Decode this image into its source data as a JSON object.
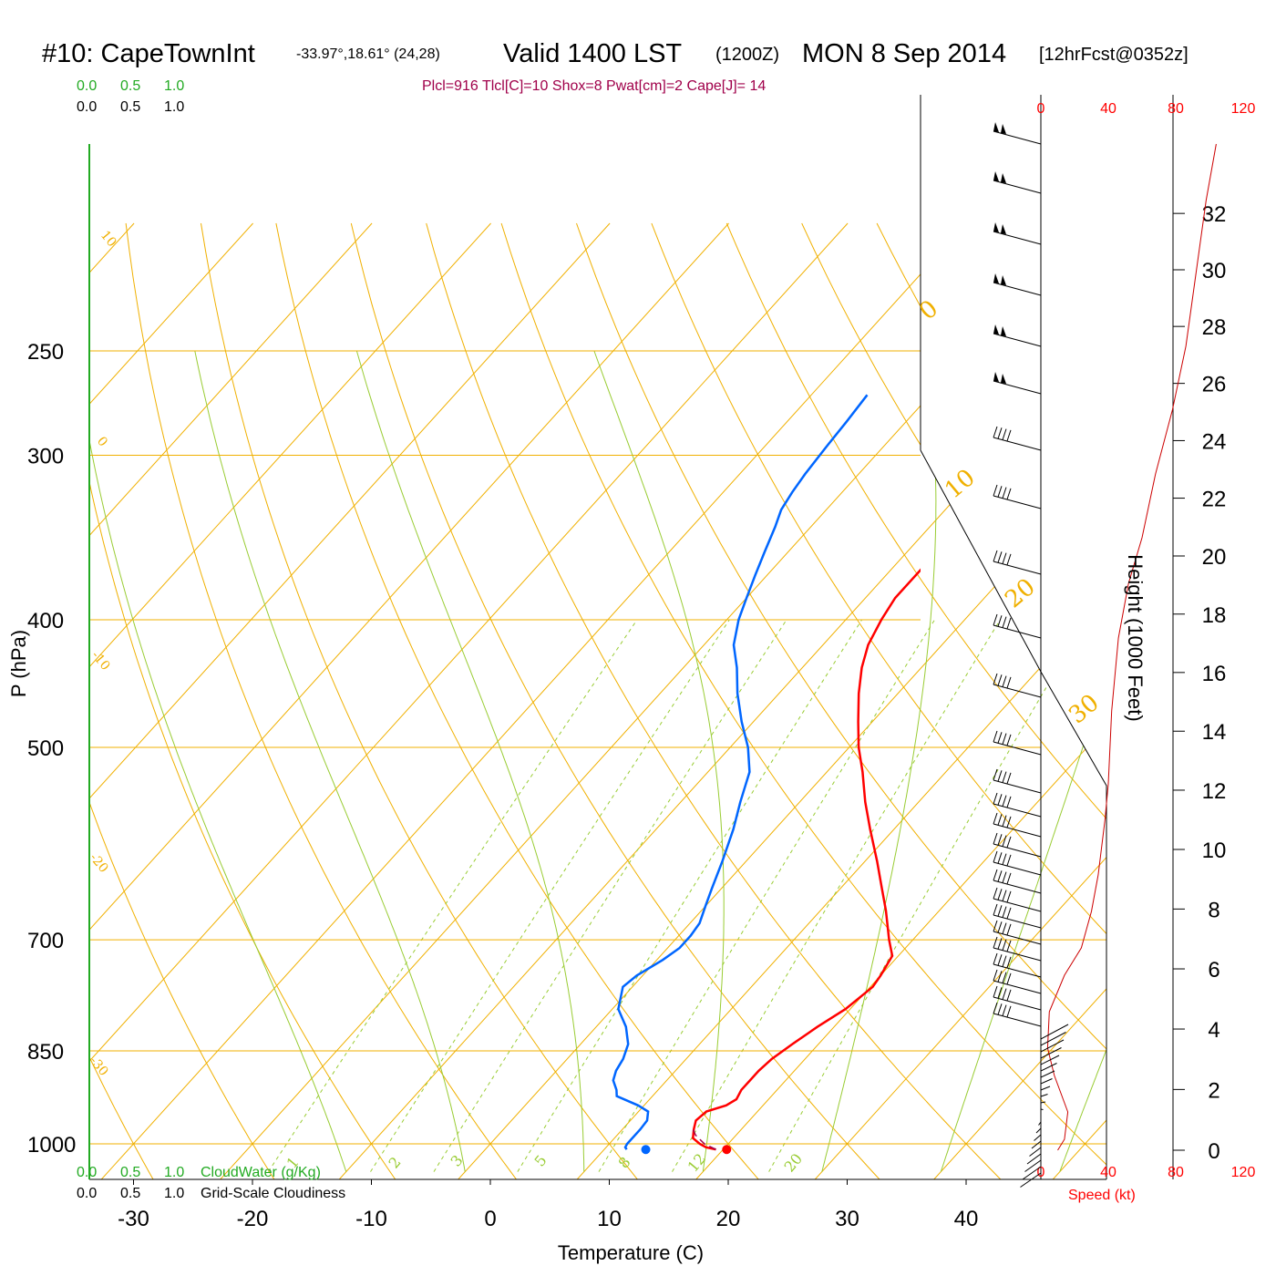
{
  "title": {
    "station": "#10: CapeTownInt",
    "coords": "-33.97°,18.61° (24,28)",
    "valid": "Valid 1400 LST",
    "utc": "(1200Z)",
    "date": "MON 8 Sep 2014",
    "forecast": "[12hrFcst@0352z]"
  },
  "indices": "Plcl=916 Tlcl[C]=10 Shox=8 Pwat[cm]=2 Cape[J]= 14",
  "chart_data": {
    "type": "line",
    "title": "#10: CapeTownInt -33.97°,18.61° (24,28) Valid 1400 LST (1200Z) MON 8 Sep 2014 [12hrFcst@0352z]",
    "xlabel": "Temperature (C)",
    "ylabel": "P (hPa)",
    "y2label": "Height (1000 Feet)",
    "x_ticks": [
      -30,
      -20,
      -10,
      0,
      10,
      20,
      30,
      40
    ],
    "p_ticks": [
      250,
      300,
      400,
      500,
      700,
      850,
      1000
    ],
    "height_ticks": [
      0,
      2,
      4,
      6,
      8,
      10,
      12,
      14,
      16,
      18,
      20,
      22,
      24,
      26,
      28,
      30,
      32
    ],
    "speed_ticks": [
      "0",
      "40",
      "80",
      "120"
    ],
    "speed_label": "Speed (kt)",
    "cloud_ticks": [
      "0.0",
      "0.5",
      "1.0"
    ],
    "cloudwater_label": "CloudWater (g/Kg)",
    "cloudiness_label": "Grid-Scale Cloudiness",
    "isotherm_labels": [
      "10",
      "0",
      "-10",
      "-20",
      "-30"
    ],
    "dry_adiabat_labels": [
      "0",
      "10",
      "20",
      "30"
    ],
    "mixing_ratio_labels": [
      "1",
      "2",
      "3",
      "5",
      "8",
      "12",
      "20"
    ],
    "series": [
      {
        "name": "Temperature",
        "color": "#ff0000",
        "points": [
          [
            19.4,
            1010
          ],
          [
            18.4,
            1006
          ],
          [
            17.6,
            1000
          ],
          [
            16.6,
            990
          ],
          [
            16.0,
            975
          ],
          [
            15.5,
            960
          ],
          [
            15.7,
            945
          ],
          [
            16.9,
            935
          ],
          [
            17.3,
            925
          ],
          [
            17.0,
            910
          ],
          [
            17.0,
            895
          ],
          [
            17.0,
            880
          ],
          [
            17.2,
            862
          ],
          [
            17.8,
            840
          ],
          [
            18.6,
            815
          ],
          [
            19.6,
            790
          ],
          [
            20.2,
            760
          ],
          [
            20.0,
            745
          ],
          [
            19.5,
            720
          ],
          [
            18.0,
            700
          ],
          [
            15.5,
            665
          ],
          [
            13.5,
            640
          ],
          [
            11.0,
            610
          ],
          [
            8.0,
            577
          ],
          [
            5.5,
            550
          ],
          [
            3.0,
            522
          ],
          [
            0.8,
            500
          ],
          [
            -1.2,
            478
          ],
          [
            -3.3,
            455
          ],
          [
            -5.0,
            435
          ],
          [
            -6.2,
            418
          ],
          [
            -7.0,
            400
          ],
          [
            -7.5,
            385
          ],
          [
            -7.5,
            370
          ],
          [
            -7.5,
            355
          ],
          [
            -7.8,
            340
          ],
          [
            -8.0,
            330
          ],
          [
            -8.5,
            320
          ],
          [
            -9.2,
            310
          ],
          [
            -10.5,
            295
          ],
          [
            -12.0,
            283
          ],
          [
            -13.5,
            270
          ]
        ]
      },
      {
        "name": "Dewpoint",
        "color": "#0066ff",
        "points": [
          [
            11.9,
            1010
          ],
          [
            11.6,
            1006
          ],
          [
            11.5,
            1000
          ],
          [
            11.5,
            975
          ],
          [
            11.4,
            960
          ],
          [
            10.8,
            945
          ],
          [
            9.5,
            935
          ],
          [
            7.0,
            920
          ],
          [
            6.5,
            910
          ],
          [
            5.5,
            895
          ],
          [
            5.0,
            880
          ],
          [
            4.7,
            862
          ],
          [
            4.0,
            840
          ],
          [
            2.5,
            815
          ],
          [
            0.5,
            790
          ],
          [
            -0.8,
            760
          ],
          [
            -0.5,
            745
          ],
          [
            0.5,
            725
          ],
          [
            1.0,
            710
          ],
          [
            1.0,
            695
          ],
          [
            0.8,
            680
          ],
          [
            0.0,
            660
          ],
          [
            -0.8,
            640
          ],
          [
            -2.0,
            610
          ],
          [
            -3.5,
            577
          ],
          [
            -5.0,
            550
          ],
          [
            -6.5,
            522
          ],
          [
            -8.5,
            500
          ],
          [
            -11.0,
            478
          ],
          [
            -13.5,
            455
          ],
          [
            -15.5,
            435
          ],
          [
            -17.5,
            418
          ],
          [
            -19.0,
            400
          ],
          [
            -20.0,
            385
          ],
          [
            -21.0,
            370
          ],
          [
            -22.0,
            355
          ],
          [
            -23.0,
            340
          ],
          [
            -23.8,
            330
          ],
          [
            -24.2,
            320
          ],
          [
            -24.5,
            310
          ],
          [
            -24.8,
            295
          ],
          [
            -25.0,
            283
          ],
          [
            -25.3,
            270
          ]
        ]
      },
      {
        "name": "Parcel",
        "color": "#a0004a",
        "points": [
          [
            19.4,
            1010
          ],
          [
            18.0,
            1000
          ],
          [
            16.6,
            985
          ],
          [
            15.6,
            970
          ]
        ]
      }
    ],
    "surface_points": [
      {
        "name": "surface-temperature",
        "color": "#ff0000",
        "t": 20.3,
        "p": 1010
      },
      {
        "name": "surface-dewpoint",
        "color": "#0066ff",
        "t": 13.5,
        "p": 1010
      }
    ]
  }
}
